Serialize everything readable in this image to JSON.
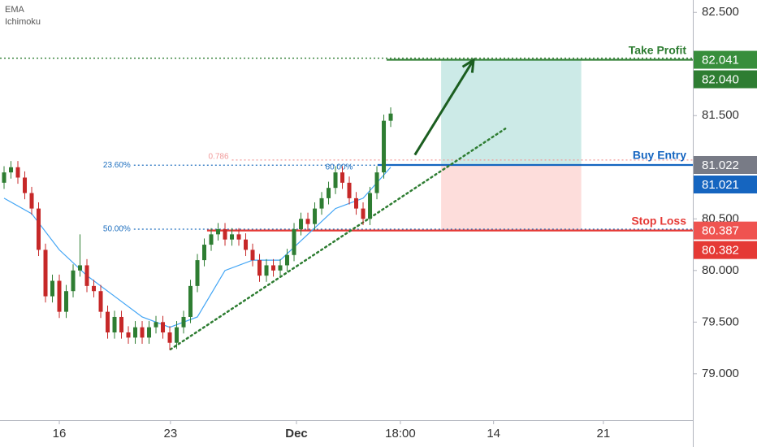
{
  "chart_data": {
    "type": "candlestick",
    "indicators": [
      "EMA",
      "Ichimoku"
    ],
    "x": [
      0,
      1,
      2,
      3,
      4,
      5,
      6,
      7,
      8,
      9,
      10,
      11,
      12,
      13,
      14,
      15,
      16,
      17,
      18,
      19,
      20,
      21,
      22,
      23,
      24,
      25,
      26,
      27,
      28,
      29,
      30,
      31,
      32,
      33,
      34,
      35,
      36,
      37,
      38,
      39,
      40,
      41,
      42,
      43,
      44,
      45,
      46,
      47,
      48,
      49,
      50,
      51,
      52,
      53,
      54,
      55,
      56
    ],
    "open": [
      80.85,
      80.95,
      81.0,
      80.9,
      80.75,
      80.6,
      80.2,
      79.75,
      79.9,
      79.6,
      79.8,
      80.0,
      80.05,
      79.85,
      79.8,
      79.6,
      79.4,
      79.55,
      79.4,
      79.35,
      79.45,
      79.35,
      79.45,
      79.5,
      79.4,
      79.3,
      79.45,
      79.55,
      79.85,
      80.1,
      80.25,
      80.35,
      80.4,
      80.3,
      80.35,
      80.3,
      80.2,
      80.1,
      79.95,
      80.05,
      80.0,
      80.05,
      80.15,
      80.4,
      80.5,
      80.45,
      80.6,
      80.7,
      80.8,
      80.95,
      80.85,
      80.7,
      80.6,
      80.5,
      80.75,
      80.95,
      81.45
    ],
    "high": [
      81.01,
      81.06,
      81.06,
      80.96,
      80.81,
      80.66,
      80.26,
      79.96,
      79.96,
      79.86,
      80.06,
      80.35,
      80.11,
      79.91,
      79.86,
      79.66,
      79.61,
      79.61,
      79.46,
      79.51,
      79.51,
      79.51,
      79.56,
      79.56,
      79.46,
      79.51,
      79.61,
      79.91,
      80.16,
      80.31,
      80.41,
      80.46,
      80.46,
      80.41,
      80.41,
      80.36,
      80.26,
      80.16,
      80.11,
      80.11,
      80.11,
      80.21,
      80.46,
      80.56,
      80.56,
      80.66,
      80.76,
      80.86,
      81.01,
      81.01,
      80.91,
      80.76,
      80.66,
      80.81,
      81.01,
      81.51,
      81.58
    ],
    "low": [
      80.79,
      80.89,
      80.84,
      80.69,
      80.54,
      80.14,
      79.69,
      79.69,
      79.54,
      79.54,
      79.74,
      79.94,
      79.79,
      79.74,
      79.54,
      79.34,
      79.34,
      79.34,
      79.29,
      79.29,
      79.29,
      79.29,
      79.39,
      79.34,
      79.23,
      79.24,
      79.39,
      79.49,
      79.79,
      80.04,
      80.19,
      80.29,
      80.24,
      80.24,
      80.24,
      80.14,
      80.04,
      79.89,
      79.89,
      79.94,
      79.94,
      79.99,
      80.09,
      80.34,
      80.39,
      80.39,
      80.54,
      80.64,
      80.74,
      80.79,
      80.64,
      80.54,
      80.44,
      80.44,
      80.69,
      80.89,
      81.39
    ],
    "close": [
      80.95,
      81.0,
      80.9,
      80.75,
      80.6,
      80.2,
      79.75,
      79.9,
      79.6,
      79.8,
      80.0,
      80.05,
      79.85,
      79.8,
      79.6,
      79.4,
      79.55,
      79.4,
      79.35,
      79.45,
      79.35,
      79.45,
      79.5,
      79.4,
      79.3,
      79.45,
      79.55,
      79.85,
      80.1,
      80.25,
      80.35,
      80.4,
      80.3,
      80.35,
      80.3,
      80.2,
      80.1,
      79.95,
      80.05,
      80.0,
      80.05,
      80.15,
      80.4,
      80.5,
      80.45,
      80.6,
      80.7,
      80.8,
      80.95,
      80.85,
      80.7,
      80.6,
      80.5,
      80.75,
      80.95,
      81.45,
      81.52
    ],
    "up_color": "#2e7d32",
    "down_color": "#c62828",
    "ema": {
      "x": [
        0,
        4,
        8,
        12,
        16,
        20,
        24,
        28,
        32,
        36,
        40,
        44,
        48,
        52,
        56
      ],
      "values": [
        80.7,
        80.55,
        80.2,
        79.95,
        79.75,
        79.55,
        79.45,
        79.55,
        80.0,
        80.1,
        80.1,
        80.35,
        80.6,
        80.7,
        81.0
      ],
      "color": "#42a5f5"
    },
    "xlim": [
      -0.59,
      99.76
    ],
    "xticks": [
      {
        "value": 8,
        "label": "16"
      },
      {
        "value": 24.1,
        "label": "23"
      },
      {
        "value": 42.35,
        "label": "Dec"
      },
      {
        "value": 57.4,
        "label": "18:00"
      },
      {
        "value": 70.9,
        "label": "14"
      },
      {
        "value": 86.8,
        "label": "21"
      }
    ],
    "ylim": [
      78.55,
      82.62
    ],
    "yticks": [
      {
        "value": 79,
        "label": "79.000"
      },
      {
        "value": 79.5,
        "label": "79.500"
      },
      {
        "value": 80,
        "label": "80.000"
      },
      {
        "value": 80.5,
        "label": "80.500"
      },
      {
        "value": 81.5,
        "label": "81.500"
      },
      {
        "value": 82.5,
        "label": "82.500"
      }
    ],
    "position": {
      "x": [
        63.3,
        83.6
      ],
      "target": 82.041,
      "entry": 81.022,
      "stop": 80.387
    },
    "levels": [
      {
        "label": "Take Profit",
        "value": 82.041,
        "start": 55.4,
        "color": "#2e7d32"
      },
      {
        "label": "Buy Entry",
        "value": 81.022,
        "start": 54.1,
        "color": "#1565c0"
      },
      {
        "label": "Stop Loss",
        "value": 80.387,
        "start": 29.4,
        "color": "#e53935"
      }
    ],
    "fib": [
      {
        "label": "23.60%",
        "value": 81.02,
        "start": 18.8,
        "color": "#1e6fbf"
      },
      {
        "label": "50.00%",
        "value": 80.4,
        "start": 18.8,
        "color": "#1e6fbf"
      },
      {
        "label": "0.786",
        "value": 81.07,
        "start": 33,
        "color": "#f19a9a"
      },
      {
        "label": "60.00%",
        "value": 81.0,
        "start": 47,
        "color": "#1e6fbf"
      }
    ],
    "tags": [
      {
        "value": 82.041,
        "color": "#388e3c"
      },
      {
        "value": 82.04,
        "label": "82.040",
        "color": "#2e7d32"
      },
      {
        "value": 81.022,
        "color": "#787b86"
      },
      {
        "value": 81.021,
        "color": "#1565c0"
      },
      {
        "value": 80.387,
        "color": "#ef5350"
      },
      {
        "value": 80.382,
        "color": "#e53935"
      }
    ],
    "trendline": {
      "x": [
        24.1,
        72.6
      ],
      "y": [
        79.236,
        81.374
      ],
      "color": "#2e7d32"
    },
    "arrow": {
      "x": [
        59.5,
        68.0
      ],
      "y": [
        81.12,
        82.04
      ],
      "color": "#1b5e20"
    }
  }
}
